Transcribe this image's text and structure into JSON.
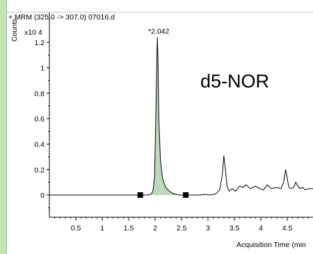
{
  "chart_data": {
    "type": "line",
    "title": "+ MRM (325.0 -> 307.0) 07016.d",
    "ylabel": "Counts",
    "y_multiplier": "x10 4",
    "xlabel": "Acquisition Time (min",
    "annotation": "d5-NOR",
    "peak_label": "*2.042",
    "xlim": [
      0,
      5.0
    ],
    "ylim": [
      -0.1,
      1.3
    ],
    "x_ticks": [
      "0.5",
      "1",
      "1.5",
      "2",
      "2.5",
      "3",
      "3.5",
      "4",
      "4.5"
    ],
    "y_ticks": [
      "0",
      "0.2",
      "0.4",
      "0.6",
      "0.8",
      "1",
      "1.2"
    ],
    "integration_markers": [
      1.72,
      2.58
    ],
    "integration_range": [
      1.72,
      2.58
    ],
    "series": [
      {
        "x": [
          0.0,
          0.5,
          1.0,
          1.5,
          1.85,
          1.92,
          1.96,
          1.99,
          2.01,
          2.03,
          2.042,
          2.055,
          2.07,
          2.1,
          2.14,
          2.2,
          2.27,
          2.35,
          2.45,
          2.55,
          2.65,
          2.75,
          2.85,
          2.95,
          3.05,
          3.15,
          3.22,
          3.27,
          3.3,
          3.33,
          3.36,
          3.4,
          3.46,
          3.52,
          3.6,
          3.66,
          3.72,
          3.8,
          3.9,
          3.98,
          4.05,
          4.12,
          4.2,
          4.3,
          4.38,
          4.43,
          4.47,
          4.5,
          4.53,
          4.57,
          4.62,
          4.66,
          4.7,
          4.74,
          4.79,
          4.84,
          4.9,
          5.0
        ],
        "y": [
          0.0,
          0.0,
          0.0,
          0.0,
          0.0,
          0.005,
          0.03,
          0.15,
          0.55,
          1.0,
          1.24,
          1.05,
          0.6,
          0.28,
          0.13,
          0.06,
          0.03,
          0.01,
          0.0,
          0.0,
          0.0,
          0.0,
          0.0,
          0.005,
          0.0,
          0.01,
          0.04,
          0.15,
          0.31,
          0.2,
          0.07,
          0.03,
          0.05,
          0.03,
          0.07,
          0.06,
          0.08,
          0.05,
          0.07,
          0.05,
          0.04,
          0.08,
          0.05,
          0.06,
          0.05,
          0.1,
          0.2,
          0.13,
          0.06,
          0.05,
          0.06,
          0.1,
          0.07,
          0.05,
          0.06,
          0.04,
          0.05,
          0.05
        ]
      }
    ],
    "colors": {
      "trace": "#000000",
      "fill": "#bcd9bc",
      "axis": "#000000",
      "background": "#ffffff",
      "outer": "#c5e6b4"
    }
  }
}
